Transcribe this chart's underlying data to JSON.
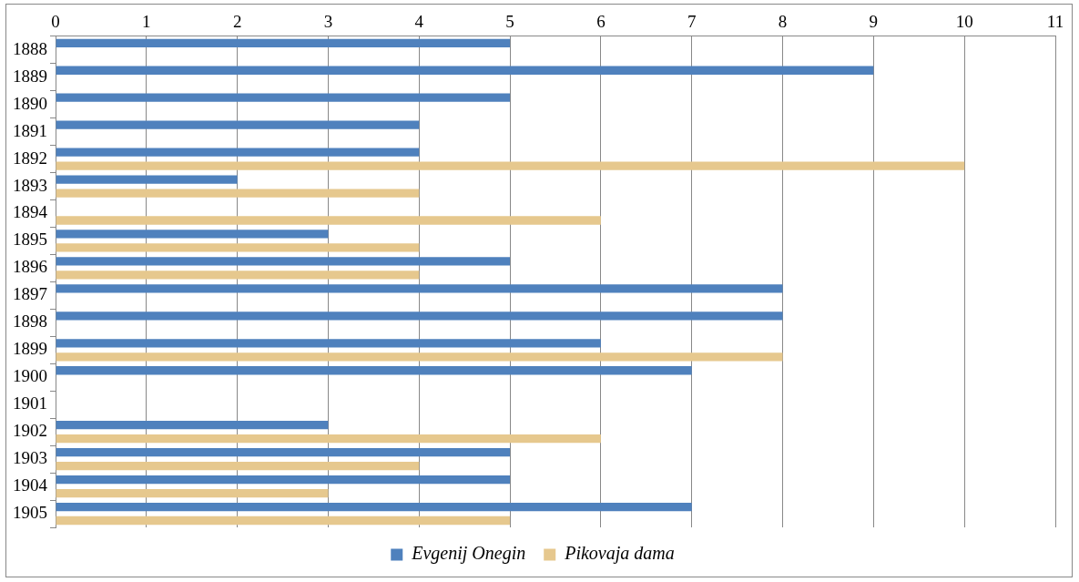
{
  "chart_data": {
    "type": "bar",
    "orientation": "horizontal",
    "categories": [
      "1888",
      "1889",
      "1890",
      "1891",
      "1892",
      "1893",
      "1894",
      "1895",
      "1896",
      "1897",
      "1898",
      "1899",
      "1900",
      "1901",
      "1902",
      "1903",
      "1904",
      "1905"
    ],
    "series": [
      {
        "name": "Evgenij Onegin",
        "color": "#4f81bd",
        "values": [
          5,
          9,
          5,
          4,
          4,
          2,
          null,
          3,
          5,
          8,
          8,
          6,
          7,
          null,
          3,
          5,
          5,
          7
        ]
      },
      {
        "name": "Pikovaja dama",
        "color": "#e6c88e",
        "values": [
          null,
          null,
          null,
          null,
          10,
          4,
          6,
          4,
          4,
          null,
          null,
          8,
          null,
          null,
          6,
          4,
          3,
          5
        ]
      }
    ],
    "xlim": [
      0,
      11
    ],
    "xticks": [
      0,
      1,
      2,
      3,
      4,
      5,
      6,
      7,
      8,
      9,
      10,
      11
    ],
    "grid": "x",
    "legend": "bottom"
  }
}
